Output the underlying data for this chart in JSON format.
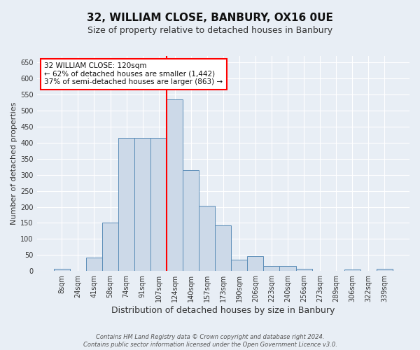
{
  "title": "32, WILLIAM CLOSE, BANBURY, OX16 0UE",
  "subtitle": "Size of property relative to detached houses in Banbury",
  "xlabel": "Distribution of detached houses by size in Banbury",
  "ylabel": "Number of detached properties",
  "bar_labels": [
    "8sqm",
    "24sqm",
    "41sqm",
    "58sqm",
    "74sqm",
    "91sqm",
    "107sqm",
    "124sqm",
    "140sqm",
    "157sqm",
    "173sqm",
    "190sqm",
    "206sqm",
    "223sqm",
    "240sqm",
    "256sqm",
    "273sqm",
    "289sqm",
    "306sqm",
    "322sqm",
    "339sqm"
  ],
  "bar_values": [
    8,
    0,
    42,
    150,
    415,
    415,
    415,
    535,
    315,
    203,
    143,
    35,
    47,
    15,
    15,
    8,
    0,
    0,
    5,
    0,
    6
  ],
  "bar_color": "#ccd9e8",
  "bar_edge_color": "#5b8db8",
  "vline_color": "red",
  "annotation_text": "32 WILLIAM CLOSE: 120sqm\n← 62% of detached houses are smaller (1,442)\n37% of semi-detached houses are larger (863) →",
  "annotation_box_color": "white",
  "annotation_box_edge_color": "red",
  "annotation_fontsize": 7.5,
  "ylim": [
    0,
    670
  ],
  "yticks": [
    0,
    50,
    100,
    150,
    200,
    250,
    300,
    350,
    400,
    450,
    500,
    550,
    600,
    650
  ],
  "background_color": "#e8eef5",
  "grid_color": "white",
  "footnote1": "Contains HM Land Registry data © Crown copyright and database right 2024.",
  "footnote2": "Contains public sector information licensed under the Open Government Licence v3.0.",
  "title_fontsize": 11,
  "subtitle_fontsize": 9,
  "xlabel_fontsize": 9,
  "ylabel_fontsize": 8,
  "tick_fontsize": 7
}
